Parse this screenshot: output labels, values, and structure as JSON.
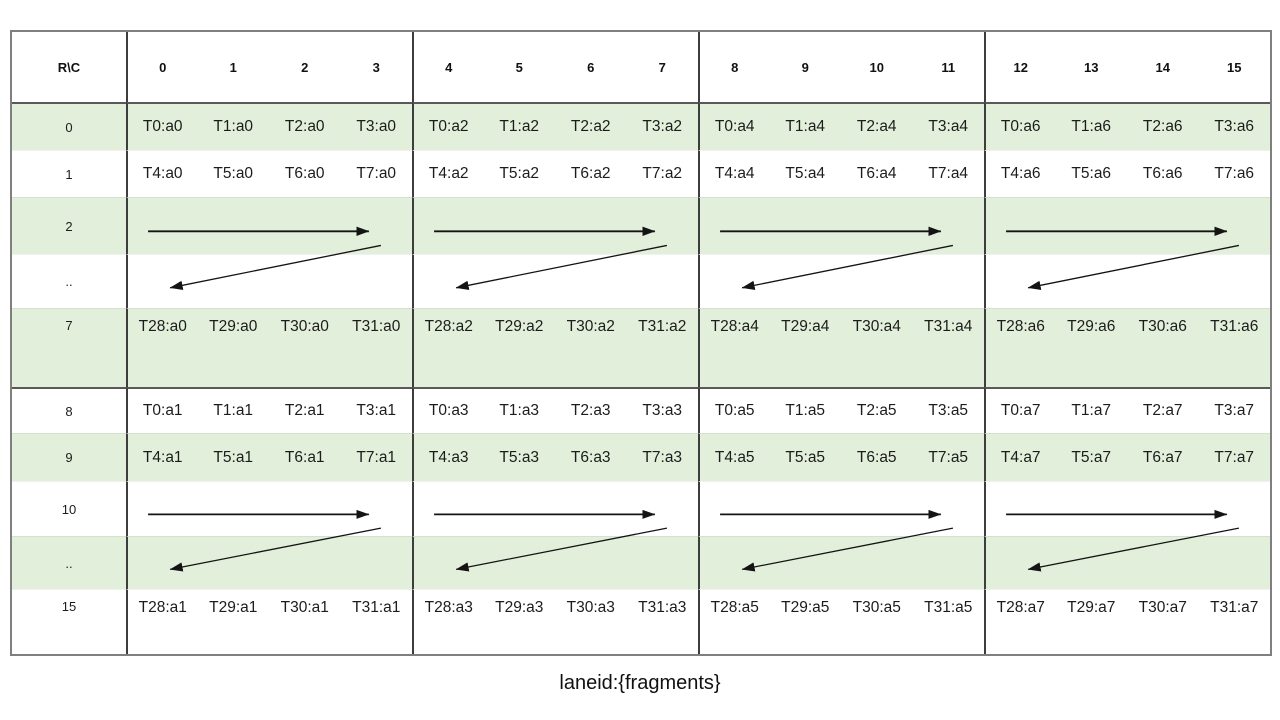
{
  "caption": "laneid:{fragments}",
  "colors": {
    "band_green": "#e2efda",
    "grid_border": "#7f7f7f",
    "thick_line": "#595959",
    "block_line": "#3d3d3d",
    "arrow": "#141414",
    "text": "#1c1c1c"
  },
  "table": {
    "corner_label": "R\\C",
    "col_headers": [
      "0",
      "1",
      "2",
      "3",
      "4",
      "5",
      "6",
      "7",
      "8",
      "9",
      "10",
      "11",
      "12",
      "13",
      "14",
      "15"
    ],
    "rows": [
      {
        "label": "0",
        "kind": "cells",
        "band": "green",
        "thick_top": true,
        "cells": [
          "T0:a0",
          "T1:a0",
          "T2:a0",
          "T3:a0",
          "T0:a2",
          "T1:a2",
          "T2:a2",
          "T3:a2",
          "T0:a4",
          "T1:a4",
          "T2:a4",
          "T3:a4",
          "T0:a6",
          "T1:a6",
          "T2:a6",
          "T3:a6"
        ]
      },
      {
        "label": "1",
        "kind": "cells",
        "band": "white",
        "cells": [
          "T4:a0",
          "T5:a0",
          "T6:a0",
          "T7:a0",
          "T4:a2",
          "T5:a2",
          "T6:a2",
          "T7:a2",
          "T4:a4",
          "T5:a4",
          "T6:a4",
          "T7:a4",
          "T4:a6",
          "T5:a6",
          "T6:a6",
          "T7:a6"
        ]
      },
      {
        "label": "2",
        "kind": "arrow-forward",
        "band": "green"
      },
      {
        "label": "..",
        "kind": "arrow-return",
        "band": "white"
      },
      {
        "label": "7",
        "kind": "cells",
        "band": "green",
        "tall": true,
        "cells": [
          "T28:a0",
          "T29:a0",
          "T30:a0",
          "T31:a0",
          "T28:a2",
          "T29:a2",
          "T30:a2",
          "T31:a2",
          "T28:a4",
          "T29:a4",
          "T30:a4",
          "T31:a4",
          "T28:a6",
          "T29:a6",
          "T30:a6",
          "T31:a6"
        ]
      },
      {
        "label": "8",
        "kind": "cells",
        "band": "white",
        "thick_top": true,
        "cells": [
          "T0:a1",
          "T1:a1",
          "T2:a1",
          "T3:a1",
          "T0:a3",
          "T1:a3",
          "T2:a3",
          "T3:a3",
          "T0:a5",
          "T1:a5",
          "T2:a5",
          "T3:a5",
          "T0:a7",
          "T1:a7",
          "T2:a7",
          "T3:a7"
        ]
      },
      {
        "label": "9",
        "kind": "cells",
        "band": "green",
        "cells": [
          "T4:a1",
          "T5:a1",
          "T6:a1",
          "T7:a1",
          "T4:a3",
          "T5:a3",
          "T6:a3",
          "T7:a3",
          "T4:a5",
          "T5:a5",
          "T6:a5",
          "T7:a5",
          "T4:a7",
          "T5:a7",
          "T6:a7",
          "T7:a7"
        ]
      },
      {
        "label": "10",
        "kind": "arrow-forward",
        "band": "white"
      },
      {
        "label": "..",
        "kind": "arrow-return",
        "band": "green"
      },
      {
        "label": "15",
        "kind": "cells",
        "band": "white",
        "tall": true,
        "cells": [
          "T28:a1",
          "T29:a1",
          "T30:a1",
          "T31:a1",
          "T28:a3",
          "T29:a3",
          "T30:a3",
          "T31:a3",
          "T28:a5",
          "T29:a5",
          "T30:a5",
          "T31:a5",
          "T28:a7",
          "T29:a7",
          "T30:a7",
          "T31:a7"
        ]
      }
    ]
  }
}
